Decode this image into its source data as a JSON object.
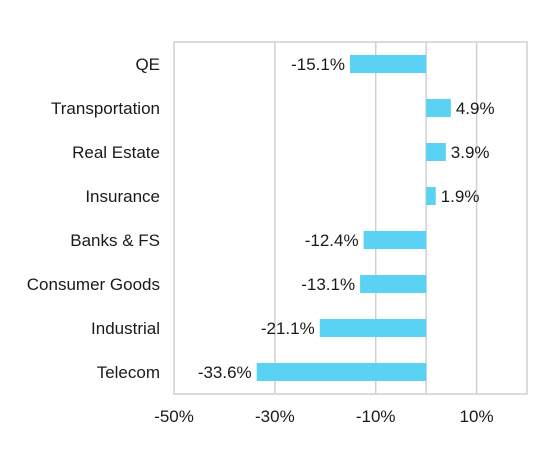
{
  "chart_data": {
    "type": "bar",
    "orientation": "horizontal",
    "title": "",
    "xlabel": "",
    "ylabel": "",
    "categories": [
      "QE",
      "Transportation",
      "Real Estate",
      "Insurance",
      "Banks & FS",
      "Consumer Goods",
      "Industrial",
      "Telecom"
    ],
    "values": [
      -15.1,
      4.9,
      3.9,
      1.9,
      -12.4,
      -13.1,
      -21.1,
      -33.6
    ],
    "data_labels": [
      "-15.1%",
      "4.9%",
      "3.9%",
      "1.9%",
      "-12.4%",
      "-13.1%",
      "-21.1%",
      "-33.6%"
    ],
    "xlim": [
      -50,
      20
    ],
    "xticks": [
      -50,
      -30,
      -10,
      10
    ],
    "xtick_labels": [
      "-50%",
      "-30%",
      "-10%",
      "10%"
    ],
    "grid": true,
    "legend": "none",
    "colors": {
      "bar": "#5ad2f4",
      "grid": "#d0d0d0",
      "border": "#cfcfcf",
      "text": "#1a1a1a"
    }
  }
}
